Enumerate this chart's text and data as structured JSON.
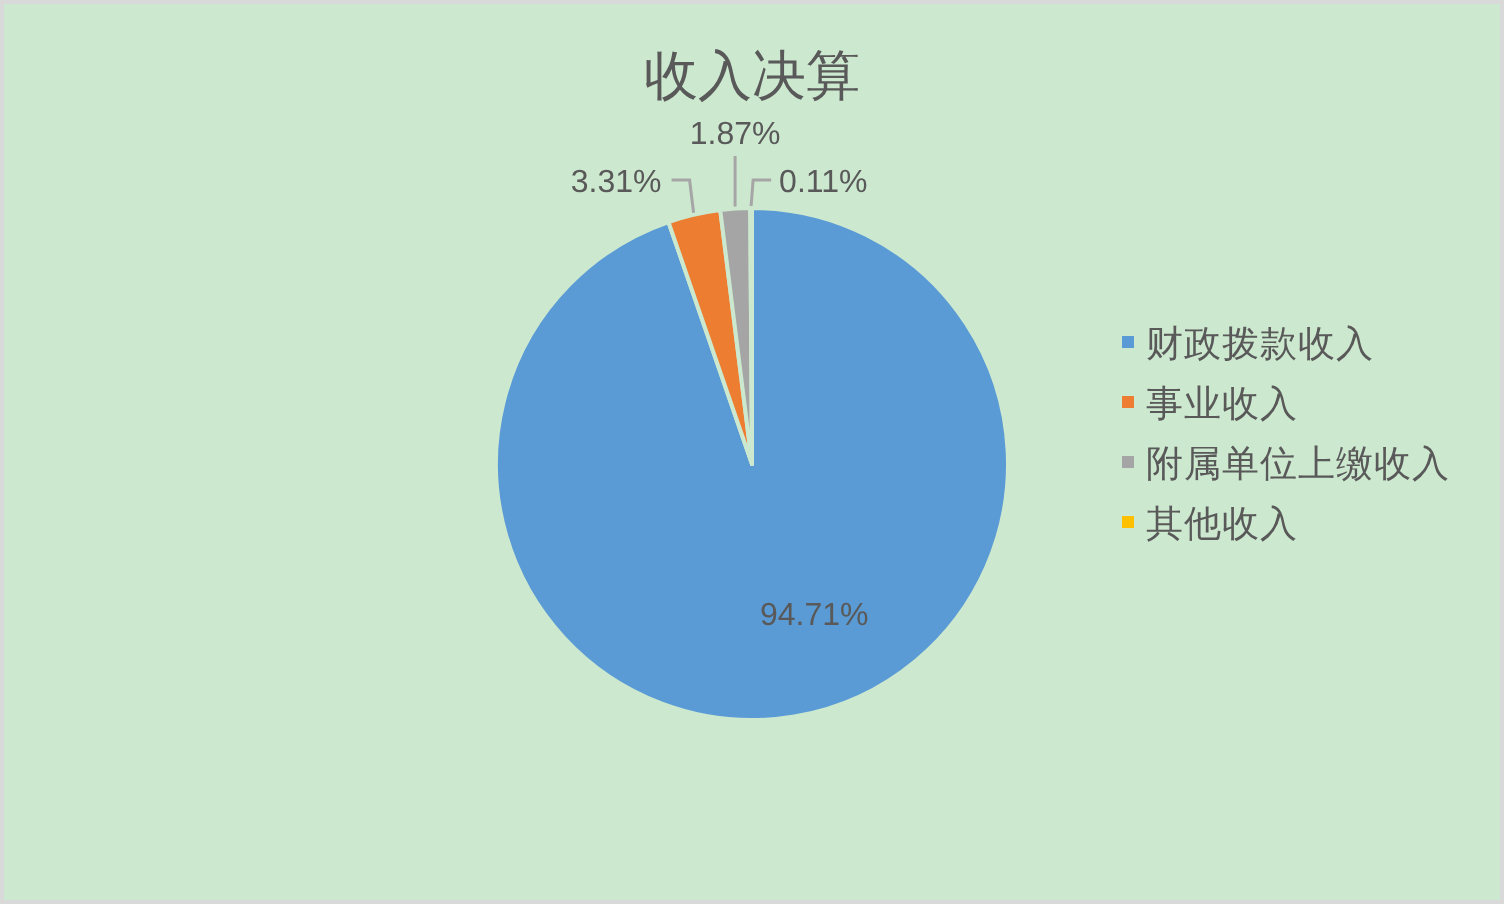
{
  "chart_data": {
    "type": "pie",
    "title": "收入决算",
    "categories": [
      "财政拨款收入",
      "事业收入",
      "附属单位上缴收入",
      "其他收入"
    ],
    "values": [
      94.71,
      3.31,
      1.87,
      0.11
    ],
    "colors": [
      "#5b9bd5",
      "#ed7d31",
      "#a5a5a5",
      "#ffc000"
    ],
    "value_labels": [
      "94.71%",
      "3.31%",
      "1.87%",
      "0.11%"
    ],
    "legend": "right"
  }
}
